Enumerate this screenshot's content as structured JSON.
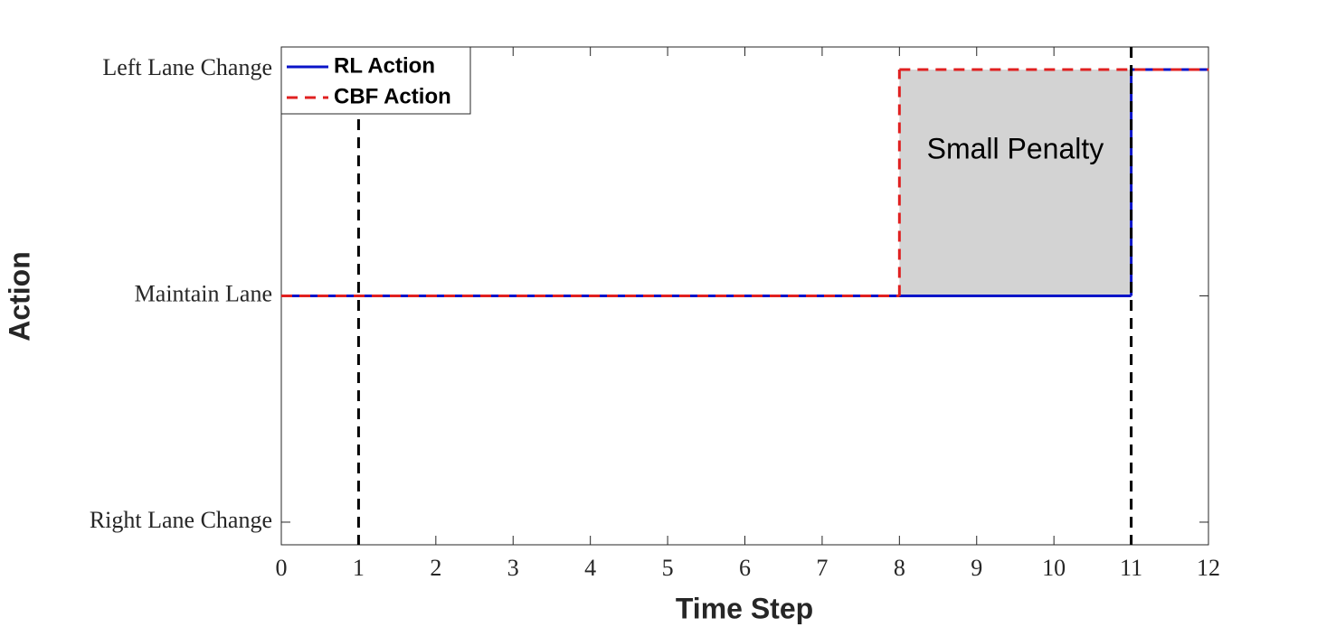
{
  "chart_data": {
    "type": "step",
    "xlabel": "Time Step",
    "ylabel": "Action",
    "xlim": [
      0,
      12
    ],
    "xticks": [
      0,
      1,
      2,
      3,
      4,
      5,
      6,
      7,
      8,
      9,
      10,
      11,
      12
    ],
    "ylim": [
      -1.1,
      1.1
    ],
    "yticks": [
      {
        "value": -1,
        "label": "Right Lane Change"
      },
      {
        "value": 0,
        "label": "Maintain Lane"
      },
      {
        "value": 1,
        "label": "Left Lane Change"
      }
    ],
    "series": [
      {
        "name": "RL Action",
        "color": "#0a14c8",
        "dash": false,
        "x": [
          0,
          11,
          12
        ],
        "values": [
          0,
          1,
          1
        ]
      },
      {
        "name": "CBF Action",
        "color": "#e02020",
        "dash": true,
        "x": [
          0,
          8,
          12
        ],
        "values": [
          0,
          1,
          1
        ]
      }
    ],
    "vlines": [
      1,
      11
    ],
    "shaded": {
      "x": [
        8,
        11
      ],
      "y": [
        0,
        1
      ],
      "label": "Small Penalty",
      "color": "#d3d3d3"
    },
    "legend": "upper left"
  }
}
